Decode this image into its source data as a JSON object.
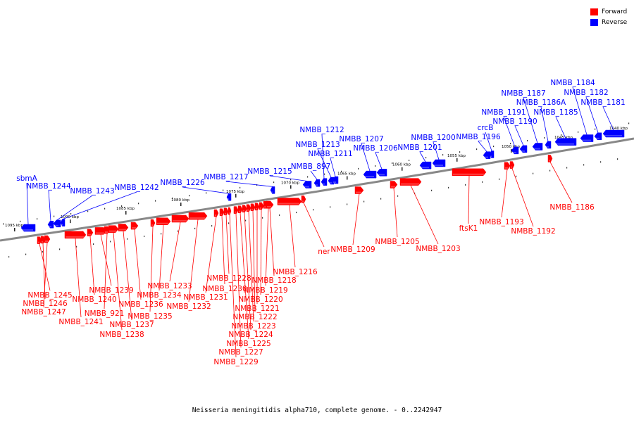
{
  "caption": "Neisseria meningitidis alpha710, complete genome. - 0..2242947",
  "legend": [
    {
      "label": "Forward",
      "color": "#ff0000"
    },
    {
      "label": "Reverse",
      "color": "#0000ff"
    }
  ],
  "colors": {
    "forward": "#ff0000",
    "reverse": "#0000ff",
    "backbone": "#888888"
  },
  "ticks": [
    "1040 kbp",
    "1045 kbp",
    "1050 kbp",
    "1055 kbp",
    "1060 kbp",
    "1065 kbp",
    "1070 kbp",
    "1075 kbp",
    "1080 kbp",
    "1085 kbp",
    "1090 kbp",
    "1095 kbp"
  ],
  "forward_genes": [
    "NMBB_1245",
    "NMBB_1246",
    "NMBB_1247",
    "NMBB_1241",
    "NMBB_1240",
    "NMBB_1239",
    "NMBB_921",
    "NMBB_1238",
    "NMBB_1237",
    "NMBB_1236",
    "NMBB_1235",
    "NMBB_1234",
    "NMBB_1233",
    "NMBB_1232",
    "NMBB_1231",
    "NMBB_1230",
    "NMBB_1228",
    "NMBB_1229",
    "NMBB_1227",
    "NMBB_1225",
    "NMBB_1224",
    "NMBB_1223",
    "NMBB_1222",
    "NMBB_1221",
    "NMBB_1220",
    "NMBB_1219",
    "NMBB_1218",
    "NMBB_1216",
    "ner",
    "NMBB_1209",
    "NMBB_1205",
    "NMBB_1203",
    "ftsK1",
    "NMBB_1193",
    "NMBB_1192",
    "NMBB_1186"
  ],
  "reverse_genes": [
    "sbmA",
    "NMBB_1244",
    "NMBB_1243",
    "NMBB_1242",
    "NMBB_1226",
    "NMBB_1217",
    "NMBB_1215",
    "NMBB_897",
    "NMBB_1212",
    "NMBB_1213",
    "NMBB_1211",
    "NMBB_1207",
    "NMBB_1206",
    "NMBB_1201",
    "NMBB_1200",
    "NMBB_1196",
    "crcB",
    "NMBB_1191",
    "NMBB_1190",
    "NMBB_1187",
    "NMBB_1186A",
    "NMBB_1185",
    "NMBB_1184",
    "NMBB_1182",
    "NMBB_1181"
  ]
}
